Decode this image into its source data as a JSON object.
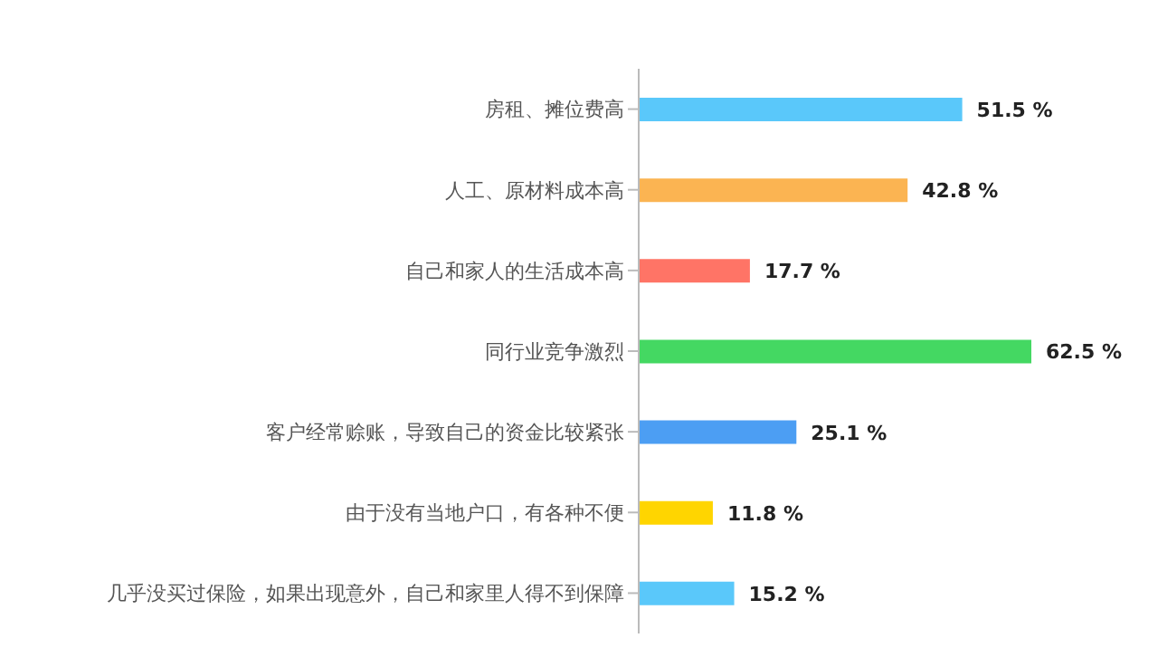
{
  "chart_data": {
    "type": "bar",
    "orientation": "horizontal",
    "categories": [
      "房租、摊位费高",
      "人工、原材料成本高",
      "自己和家人的生活成本高",
      "同行业竞争激烈",
      "客户经常赊账，导致自己的资金比较紧张",
      "由于没有当地户口，有各种不便",
      "几乎没买过保险，如果出现意外，自己和家里人得不到保障"
    ],
    "values": [
      51.5,
      42.8,
      17.7,
      62.5,
      25.1,
      11.8,
      15.2
    ],
    "value_labels": [
      "51.5 %",
      "42.8 %",
      "17.7 %",
      "62.5 %",
      "25.1 %",
      "11.8 %",
      "15.2 %"
    ],
    "colors": [
      "#5ac8fa",
      "#fbb452",
      "#ff7466",
      "#44d862",
      "#4c9ef3",
      "#ffd500",
      "#5ac8fa"
    ],
    "tick_labels": "y"
  }
}
